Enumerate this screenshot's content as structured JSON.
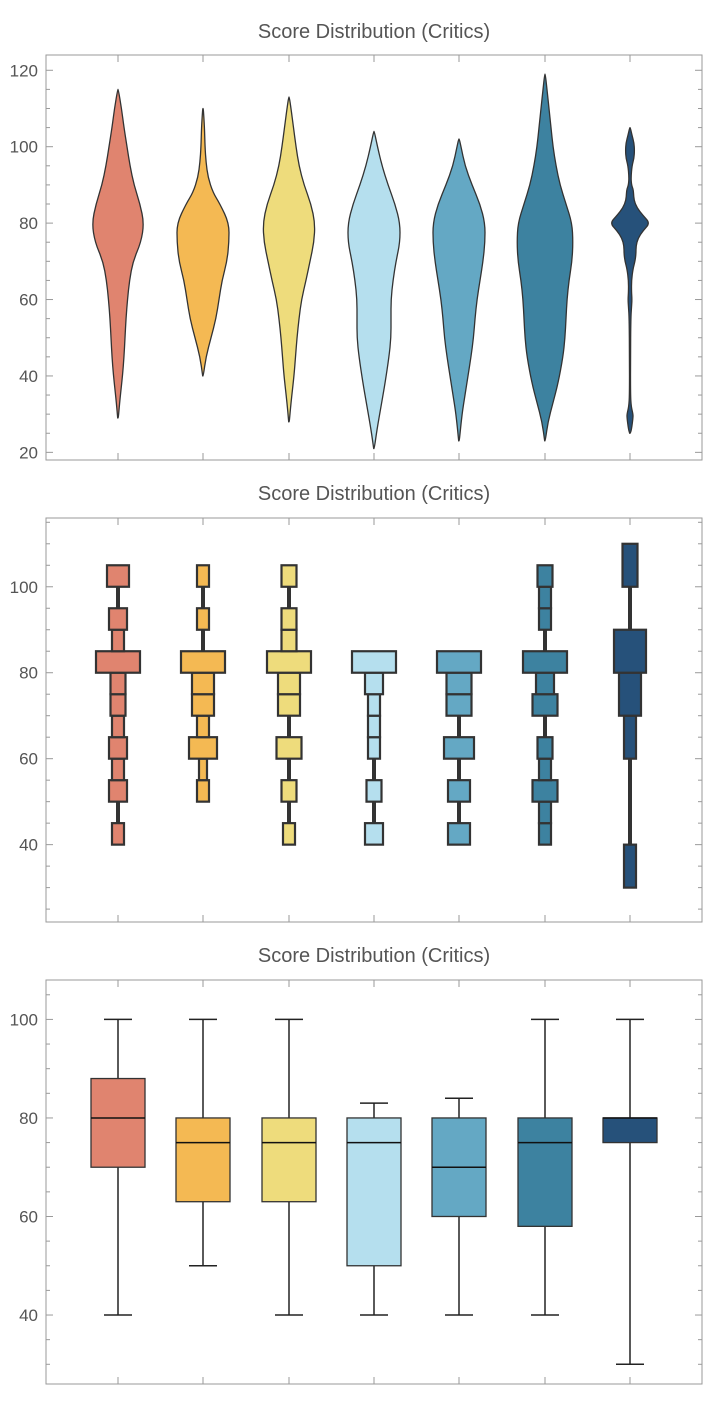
{
  "colors": [
    "#e0846f",
    "#f4b953",
    "#eedc7c",
    "#b5dfee",
    "#64a8c4",
    "#3d82a0",
    "#26517a"
  ],
  "chart_data": [
    {
      "type": "violin",
      "title": "Score Distribution (Critics)",
      "ylim": [
        18,
        124
      ],
      "yticks": [
        20,
        40,
        60,
        80,
        100,
        120
      ],
      "series": [
        {
          "min": 29,
          "max": 115,
          "profile": [
            [
              29,
              0.3
            ],
            [
              34,
              2
            ],
            [
              40,
              4.5
            ],
            [
              45,
              6
            ],
            [
              50,
              7
            ],
            [
              55,
              8
            ],
            [
              60,
              9.5
            ],
            [
              65,
              11.5
            ],
            [
              70,
              15
            ],
            [
              75,
              23
            ],
            [
              80,
              26
            ],
            [
              85,
              22
            ],
            [
              90,
              16
            ],
            [
              95,
              12
            ],
            [
              100,
              9
            ],
            [
              105,
              6
            ],
            [
              110,
              3.5
            ],
            [
              115,
              0.3
            ]
          ]
        },
        {
          "min": 40,
          "max": 110,
          "profile": [
            [
              40,
              0.3
            ],
            [
              45,
              3
            ],
            [
              50,
              8
            ],
            [
              55,
              13
            ],
            [
              60,
              16
            ],
            [
              65,
              19
            ],
            [
              70,
              24
            ],
            [
              75,
              26
            ],
            [
              80,
              26
            ],
            [
              85,
              17
            ],
            [
              88,
              10
            ],
            [
              92,
              5
            ],
            [
              96,
              3
            ],
            [
              100,
              2
            ],
            [
              105,
              1.5
            ],
            [
              110,
              0.3
            ]
          ]
        },
        {
          "min": 28,
          "max": 113,
          "profile": [
            [
              28,
              0.3
            ],
            [
              33,
              2
            ],
            [
              40,
              5
            ],
            [
              45,
              6.5
            ],
            [
              50,
              8
            ],
            [
              55,
              10
            ],
            [
              60,
              12.5
            ],
            [
              65,
              17
            ],
            [
              70,
              21
            ],
            [
              75,
              25
            ],
            [
              80,
              26
            ],
            [
              85,
              22
            ],
            [
              90,
              15
            ],
            [
              95,
              10
            ],
            [
              100,
              7
            ],
            [
              105,
              4.5
            ],
            [
              110,
              2
            ],
            [
              113,
              0.3
            ]
          ]
        },
        {
          "min": 21,
          "max": 104,
          "profile": [
            [
              21,
              0.3
            ],
            [
              26,
              3
            ],
            [
              32,
              7
            ],
            [
              38,
              11
            ],
            [
              45,
              15
            ],
            [
              50,
              17
            ],
            [
              55,
              17
            ],
            [
              60,
              17
            ],
            [
              65,
              19
            ],
            [
              70,
              22
            ],
            [
              75,
              26
            ],
            [
              80,
              26
            ],
            [
              85,
              21
            ],
            [
              90,
              14
            ],
            [
              95,
              8
            ],
            [
              100,
              3.5
            ],
            [
              104,
              0.3
            ]
          ]
        },
        {
          "min": 23,
          "max": 102,
          "profile": [
            [
              23,
              0.3
            ],
            [
              30,
              3
            ],
            [
              35,
              6
            ],
            [
              40,
              9
            ],
            [
              45,
              12
            ],
            [
              50,
              14.5
            ],
            [
              55,
              16
            ],
            [
              60,
              18
            ],
            [
              65,
              21
            ],
            [
              70,
              24
            ],
            [
              75,
              26
            ],
            [
              80,
              26
            ],
            [
              85,
              21
            ],
            [
              90,
              13
            ],
            [
              95,
              6
            ],
            [
              100,
              2
            ],
            [
              102,
              0.3
            ]
          ]
        },
        {
          "min": 23,
          "max": 119,
          "profile": [
            [
              23,
              0.3
            ],
            [
              28,
              3
            ],
            [
              33,
              8
            ],
            [
              38,
              13
            ],
            [
              45,
              18
            ],
            [
              50,
              20
            ],
            [
              55,
              21
            ],
            [
              60,
              22
            ],
            [
              65,
              24
            ],
            [
              70,
              27
            ],
            [
              75,
              28
            ],
            [
              80,
              27
            ],
            [
              85,
              21
            ],
            [
              90,
              15
            ],
            [
              95,
              11
            ],
            [
              100,
              8
            ],
            [
              105,
              6
            ],
            [
              110,
              4
            ],
            [
              115,
              2
            ],
            [
              119,
              0.3
            ]
          ]
        },
        {
          "min": 25,
          "max": 105,
          "profile": [
            [
              25,
              0.3
            ],
            [
              26,
              1.5
            ],
            [
              29,
              3
            ],
            [
              30,
              3
            ],
            [
              32,
              1.2
            ],
            [
              35,
              0.5
            ],
            [
              45,
              0.5
            ],
            [
              55,
              0.8
            ],
            [
              58,
              1.5
            ],
            [
              60,
              2
            ],
            [
              62,
              1.5
            ],
            [
              65,
              1.5
            ],
            [
              68,
              3
            ],
            [
              70,
              5
            ],
            [
              72,
              6
            ],
            [
              74,
              6
            ],
            [
              76,
              8
            ],
            [
              78,
              13
            ],
            [
              80,
              20
            ],
            [
              82,
              13
            ],
            [
              84,
              7
            ],
            [
              86,
              4
            ],
            [
              88,
              3.5
            ],
            [
              89,
              3
            ],
            [
              90,
              1.5
            ],
            [
              92,
              1
            ],
            [
              95,
              2
            ],
            [
              97,
              4
            ],
            [
              99,
              4.5
            ],
            [
              101,
              4
            ],
            [
              103,
              2
            ],
            [
              105,
              0.3
            ]
          ]
        }
      ]
    },
    {
      "type": "histogram",
      "title": "Score Distribution (Critics)",
      "ylim": [
        22,
        116
      ],
      "yticks": [
        40,
        60,
        80,
        100
      ],
      "series": [
        {
          "bins": [
            [
              40,
              45,
              12
            ],
            [
              45,
              50,
              0
            ],
            [
              50,
              55,
              18
            ],
            [
              55,
              60,
              12
            ],
            [
              60,
              65,
              18
            ],
            [
              65,
              70,
              12
            ],
            [
              70,
              75,
              15
            ],
            [
              75,
              80,
              15
            ],
            [
              80,
              85,
              44
            ],
            [
              85,
              90,
              12
            ],
            [
              90,
              95,
              18
            ],
            [
              95,
              100,
              0
            ],
            [
              100,
              105,
              22
            ]
          ]
        },
        {
          "bins": [
            [
              50,
              55,
              12
            ],
            [
              55,
              60,
              8
            ],
            [
              60,
              65,
              28
            ],
            [
              65,
              70,
              12
            ],
            [
              70,
              75,
              22
            ],
            [
              75,
              80,
              22
            ],
            [
              80,
              85,
              44
            ],
            [
              85,
              90,
              0
            ],
            [
              90,
              95,
              12
            ],
            [
              95,
              100,
              0
            ],
            [
              100,
              105,
              12
            ]
          ]
        },
        {
          "bins": [
            [
              40,
              45,
              12
            ],
            [
              45,
              50,
              0
            ],
            [
              50,
              55,
              15
            ],
            [
              55,
              60,
              0
            ],
            [
              60,
              65,
              25
            ],
            [
              65,
              70,
              0
            ],
            [
              70,
              75,
              22
            ],
            [
              75,
              80,
              22
            ],
            [
              80,
              85,
              44
            ],
            [
              85,
              90,
              15
            ],
            [
              90,
              95,
              15
            ],
            [
              95,
              100,
              0
            ],
            [
              100,
              105,
              15
            ]
          ]
        },
        {
          "bins": [
            [
              40,
              45,
              18
            ],
            [
              45,
              50,
              0
            ],
            [
              50,
              55,
              15
            ],
            [
              55,
              60,
              0
            ],
            [
              60,
              65,
              12
            ],
            [
              65,
              70,
              12
            ],
            [
              70,
              75,
              12
            ],
            [
              75,
              80,
              18
            ],
            [
              80,
              85,
              44
            ]
          ]
        },
        {
          "bins": [
            [
              40,
              45,
              22
            ],
            [
              45,
              50,
              0
            ],
            [
              50,
              55,
              22
            ],
            [
              55,
              60,
              0
            ],
            [
              60,
              65,
              30
            ],
            [
              65,
              70,
              0
            ],
            [
              70,
              75,
              25
            ],
            [
              75,
              80,
              25
            ],
            [
              80,
              85,
              44
            ]
          ]
        },
        {
          "bins": [
            [
              40,
              45,
              12
            ],
            [
              45,
              50,
              12
            ],
            [
              50,
              55,
              25
            ],
            [
              55,
              60,
              12
            ],
            [
              60,
              65,
              15
            ],
            [
              65,
              70,
              0
            ],
            [
              70,
              75,
              25
            ],
            [
              75,
              80,
              18
            ],
            [
              80,
              85,
              44
            ],
            [
              85,
              90,
              0
            ],
            [
              90,
              95,
              12
            ],
            [
              95,
              100,
              12
            ],
            [
              100,
              105,
              15
            ]
          ]
        },
        {
          "bins": [
            [
              30,
              40,
              12
            ],
            [
              40,
              50,
              0
            ],
            [
              50,
              60,
              0
            ],
            [
              60,
              70,
              12
            ],
            [
              70,
              80,
              22
            ],
            [
              80,
              90,
              32
            ],
            [
              90,
              100,
              0
            ],
            [
              100,
              110,
              15
            ]
          ]
        }
      ]
    },
    {
      "type": "box",
      "title": "Score Distribution (Critics)",
      "ylim": [
        26,
        108
      ],
      "yticks": [
        40,
        60,
        80,
        100
      ],
      "series": [
        {
          "min": 40,
          "q1": 70,
          "median": 80,
          "q3": 88,
          "max": 100
        },
        {
          "min": 50,
          "q1": 63,
          "median": 75,
          "q3": 80,
          "max": 100
        },
        {
          "min": 40,
          "q1": 63,
          "median": 75,
          "q3": 80,
          "max": 100
        },
        {
          "min": 40,
          "q1": 50,
          "median": 75,
          "q3": 80,
          "max": 83
        },
        {
          "min": 40,
          "q1": 60,
          "median": 70,
          "q3": 80,
          "max": 84
        },
        {
          "min": 40,
          "q1": 58,
          "median": 75,
          "q3": 80,
          "max": 100
        },
        {
          "min": 30,
          "q1": 75,
          "median": 80,
          "q3": 80,
          "max": 100
        }
      ]
    }
  ]
}
